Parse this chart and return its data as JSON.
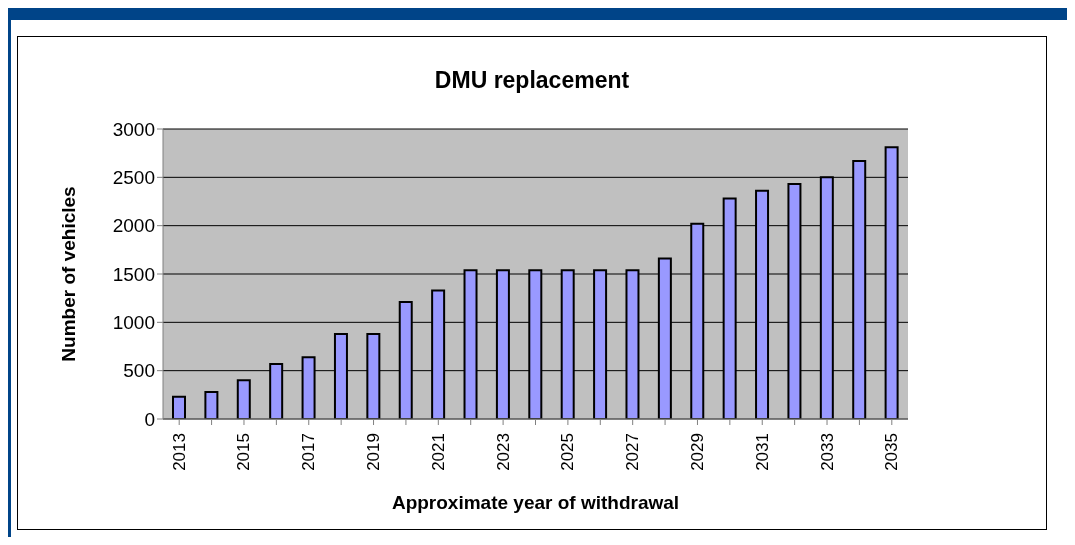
{
  "chart_data": {
    "type": "bar",
    "title": "DMU replacement",
    "xlabel": "Approximate year of withdrawal",
    "ylabel": "Number of vehicles",
    "categories": [
      "2013",
      null,
      "2015",
      null,
      "2017",
      null,
      "2019",
      null,
      "2021",
      null,
      "2023",
      null,
      "2025",
      null,
      "2027",
      null,
      "2029",
      null,
      "2031",
      null,
      "2033",
      null,
      "2035"
    ],
    "values": [
      230,
      280,
      400,
      570,
      640,
      880,
      880,
      1210,
      1330,
      1540,
      1540,
      1540,
      1540,
      1540,
      1540,
      1660,
      2020,
      2280,
      2360,
      2430,
      2500,
      2670,
      2810
    ],
    "color": "#9999ff",
    "ylim": [
      0,
      3000
    ],
    "yticks": [
      0,
      500,
      1000,
      1500,
      2000,
      2500,
      3000
    ],
    "grid": "y"
  }
}
